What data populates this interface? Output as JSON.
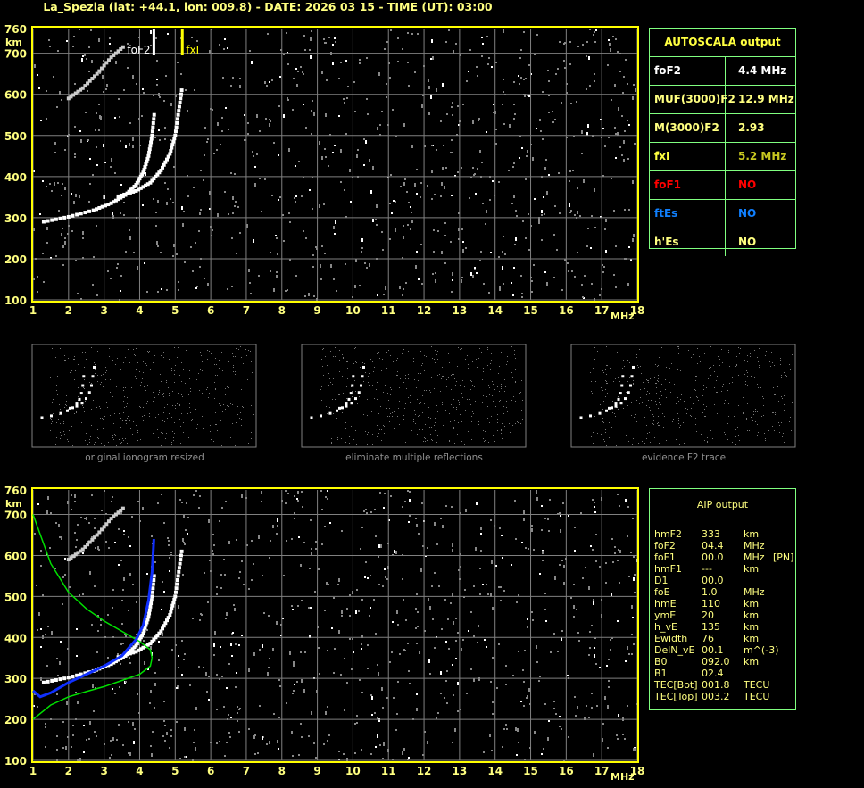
{
  "header": {
    "title": "La_Spezia (lat: +44.1, lon: 009.8) - DATE: 2026 03 15 - TIME (UT): 03:00"
  },
  "chart_data": [
    {
      "type": "scatter",
      "name": "ionogram-autoscala",
      "xlim": [
        1,
        18
      ],
      "ylim": [
        100,
        760
      ],
      "xticks": [
        "1",
        "2",
        "3",
        "4",
        "5",
        "6",
        "7",
        "8",
        "9",
        "10",
        "11",
        "12",
        "13",
        "14",
        "15",
        "16",
        "17",
        "18"
      ],
      "yticks": [
        "760",
        "700",
        "600",
        "500",
        "400",
        "300",
        "200",
        "100"
      ],
      "xlabel": "MHz",
      "ylabel": "km",
      "grid": true,
      "markers": [
        {
          "label": "foF2",
          "x": 4.4,
          "color": "#ffffff"
        },
        {
          "label": "fxI",
          "x": 5.2,
          "color": "#ffff00"
        }
      ],
      "traces": {
        "o_trace": [
          [
            1.3,
            290
          ],
          [
            2,
            302
          ],
          [
            2.7,
            318
          ],
          [
            3.2,
            335
          ],
          [
            3.6,
            355
          ],
          [
            3.9,
            380
          ],
          [
            4.1,
            410
          ],
          [
            4.25,
            450
          ],
          [
            4.35,
            500
          ],
          [
            4.42,
            560
          ]
        ],
        "x_trace": [
          [
            3.4,
            352
          ],
          [
            3.9,
            365
          ],
          [
            4.3,
            385
          ],
          [
            4.6,
            415
          ],
          [
            4.85,
            455
          ],
          [
            5.0,
            500
          ],
          [
            5.1,
            560
          ],
          [
            5.2,
            620
          ]
        ],
        "second_hop": [
          [
            2.0,
            590
          ],
          [
            2.4,
            615
          ],
          [
            2.8,
            650
          ],
          [
            3.2,
            690
          ],
          [
            3.6,
            720
          ]
        ]
      }
    },
    {
      "type": "scatter",
      "name": "ionogram-aip",
      "xlim": [
        1,
        18
      ],
      "ylim": [
        100,
        760
      ],
      "xticks": [
        "1",
        "2",
        "3",
        "4",
        "5",
        "6",
        "7",
        "8",
        "9",
        "10",
        "11",
        "12",
        "13",
        "14",
        "15",
        "16",
        "17",
        "18"
      ],
      "yticks": [
        "760",
        "700",
        "600",
        "500",
        "400",
        "300",
        "200",
        "100"
      ],
      "xlabel": "MHz",
      "ylabel": "km",
      "grid": true,
      "profile_upper": [
        [
          1,
          700
        ],
        [
          1.5,
          580
        ],
        [
          2,
          510
        ],
        [
          2.5,
          470
        ],
        [
          3,
          440
        ],
        [
          3.5,
          415
        ],
        [
          4,
          390
        ],
        [
          4.3,
          370
        ],
        [
          4.35,
          350
        ]
      ],
      "profile_lower": [
        [
          1,
          200
        ],
        [
          1.5,
          235
        ],
        [
          2,
          255
        ],
        [
          2.5,
          268
        ],
        [
          3,
          280
        ],
        [
          3.5,
          295
        ],
        [
          4,
          310
        ],
        [
          4.3,
          330
        ],
        [
          4.35,
          350
        ]
      ],
      "profile_fit": [
        [
          1,
          270
        ],
        [
          1.2,
          255
        ],
        [
          1.5,
          265
        ],
        [
          2,
          290
        ],
        [
          2.5,
          310
        ],
        [
          3,
          330
        ],
        [
          3.5,
          355
        ],
        [
          3.9,
          395
        ],
        [
          4.1,
          430
        ],
        [
          4.25,
          490
        ],
        [
          4.35,
          560
        ],
        [
          4.4,
          640
        ]
      ]
    }
  ],
  "thumbnails": [
    {
      "caption": "original ionogram resized"
    },
    {
      "caption": "eliminate multiple reflections"
    },
    {
      "caption": "evidence F2 trace"
    }
  ],
  "autoscala": {
    "title": "AUTOSCALA output",
    "rows": [
      {
        "label": "foF2",
        "value": "4.4 MHz",
        "label_color": "#ffffff",
        "value_color": "#ffffff"
      },
      {
        "label": "MUF(3000)F2",
        "value": "12.9 MHz",
        "label_color": "#ffff80",
        "value_color": "#ffff80"
      },
      {
        "label": "M(3000)F2",
        "value": "2.93",
        "label_color": "#ffff80",
        "value_color": "#ffff80"
      },
      {
        "label": "fxI",
        "value": "5.2 MHz",
        "label_color": "#ffff40",
        "value_color": "#c8c820"
      },
      {
        "label": "foF1",
        "value": "NO",
        "label_color": "#ff0000",
        "value_color": "#ff0000"
      },
      {
        "label": "ftEs",
        "value": "NO",
        "label_color": "#1080ff",
        "value_color": "#1080ff"
      },
      {
        "label": "h'Es",
        "value": "NO",
        "label_color": "#ffff80",
        "value_color": "#ffff80"
      }
    ]
  },
  "aip": {
    "title": "AIP output",
    "rows": [
      {
        "label": "hmF2",
        "value": "333",
        "unit": "km",
        "extra": ""
      },
      {
        "label": "foF2",
        "value": "04.4",
        "unit": "MHz",
        "extra": ""
      },
      {
        "label": "foF1",
        "value": "00.0",
        "unit": "MHz",
        "extra": "[PN]"
      },
      {
        "label": "hmF1",
        "value": "---",
        "unit": "km",
        "extra": ""
      },
      {
        "label": "D1",
        "value": "00.0",
        "unit": "",
        "extra": ""
      },
      {
        "label": "foE",
        "value": "1.0",
        "unit": "MHz",
        "extra": ""
      },
      {
        "label": "hmE",
        "value": "110",
        "unit": "km",
        "extra": ""
      },
      {
        "label": "ymE",
        "value": "20",
        "unit": "km",
        "extra": ""
      },
      {
        "label": "h_vE",
        "value": "135",
        "unit": "km",
        "extra": ""
      },
      {
        "label": "Ewidth",
        "value": "76",
        "unit": "km",
        "extra": ""
      },
      {
        "label": "DelN_vE",
        "value": "00.1",
        "unit": "m^(-3)",
        "extra": ""
      },
      {
        "label": "B0",
        "value": "092.0",
        "unit": "km",
        "extra": ""
      },
      {
        "label": "B1",
        "value": "02.4",
        "unit": "",
        "extra": ""
      },
      {
        "label": "TEC[Bot]",
        "value": "001.8",
        "unit": "TECU",
        "extra": ""
      },
      {
        "label": "TEC[Top]",
        "value": "003.2",
        "unit": "TECU",
        "extra": ""
      }
    ]
  }
}
